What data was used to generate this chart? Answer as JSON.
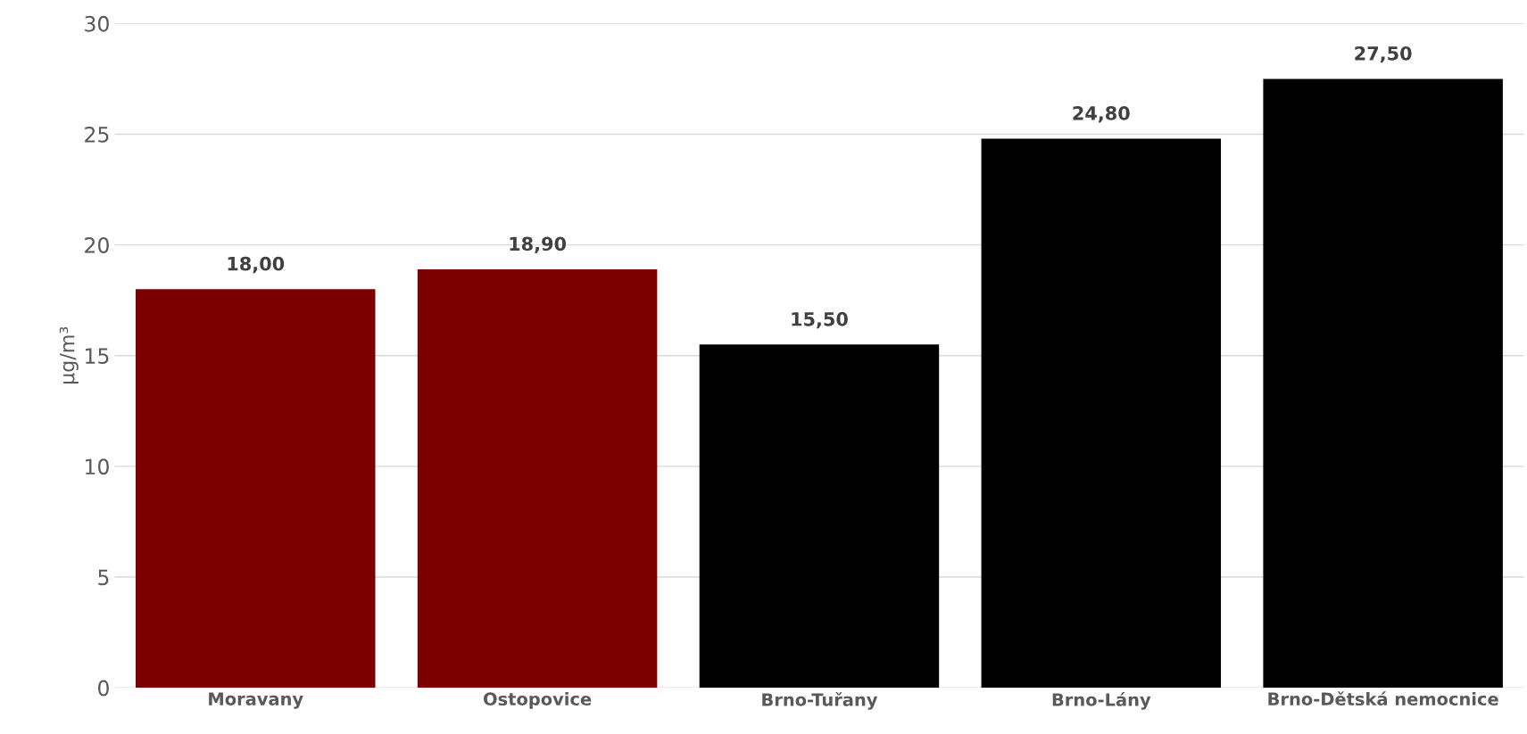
{
  "chart_data": {
    "type": "bar",
    "ylabel": "µg/m³",
    "categories": [
      "Moravany",
      "Ostopovice",
      "Brno-Tuřany",
      "Brno-Lány",
      "Brno-Dětská nemocnice"
    ],
    "values": [
      18.0,
      18.9,
      15.5,
      24.8,
      27.5
    ],
    "colors": [
      "#7a0000",
      "#7a0000",
      "#000000",
      "#000000",
      "#000000"
    ],
    "value_labels": [
      "18,00",
      "18,90",
      "15,50",
      "24,80",
      "27,50"
    ],
    "ylim": [
      0,
      30
    ],
    "yticks": [
      0,
      5,
      10,
      15,
      20,
      25,
      30
    ],
    "grid": "y"
  }
}
